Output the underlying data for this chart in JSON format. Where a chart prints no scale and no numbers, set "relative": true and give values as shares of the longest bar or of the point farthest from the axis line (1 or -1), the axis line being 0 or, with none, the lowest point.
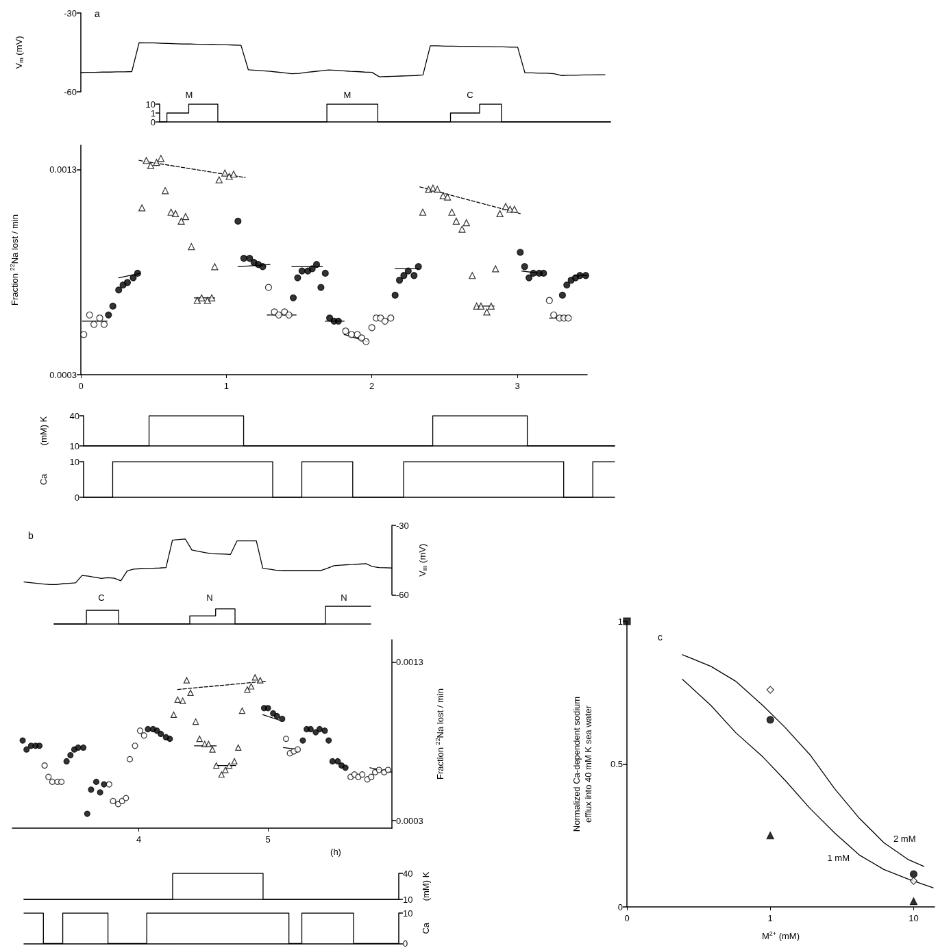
{
  "chart_data": [
    {
      "type": "line",
      "title": "a",
      "ylabel": "V$_{m}$ (mV)",
      "categories": [
        null,
        null,
        null,
        null,
        null,
        null,
        null,
        null,
        null,
        null,
        null,
        null,
        null,
        null,
        null,
        null,
        null,
        null,
        null,
        null,
        null,
        null,
        null,
        null,
        null,
        null,
        null,
        null,
        null,
        null,
        null,
        null,
        null,
        null,
        null,
        null,
        null,
        null,
        null,
        null,
        null,
        null,
        null,
        null,
        null,
        null,
        null,
        null,
        null,
        null,
        null,
        null,
        null,
        null,
        null,
        null,
        null,
        null,
        null,
        null,
        null,
        null,
        null,
        null,
        null,
        null,
        null,
        null,
        null,
        null,
        null,
        null,
        null
      ],
      "ylim": [
        -60,
        -30
      ],
      "yticks": [
        -30,
        -60
      ],
      "tick_labels": "y",
      "series": [
        {
          "color": "#000000",
          "marker": "none",
          "line_style": "solid",
          "values": [
            -52.7,
            -52.6,
            -52.6,
            -52.5,
            -52.5,
            -52.4,
            -52.4,
            -52.3,
            -41.3,
            -41.4,
            -41.4,
            -41.5,
            -41.6,
            -41.7,
            -41.8,
            -41.8,
            -41.9,
            -41.9,
            -42.0,
            -42.1,
            -42.1,
            -42.2,
            -42.3,
            -51.6,
            -51.8,
            -52.0,
            -52.2,
            -52.5,
            -52.8,
            -53.1,
            -53.0,
            -52.6,
            -52.3,
            -52.0,
            -51.7,
            -51.8,
            -52.0,
            -52.2,
            -52.3,
            -52.5,
            -52.6,
            -54.3,
            -54.2,
            -54.1,
            -54.0,
            -53.9,
            -53.8,
            -53.6,
            -42.5,
            -42.5,
            -42.6,
            -42.6,
            -42.7,
            -42.7,
            -42.7,
            -42.8,
            -42.8,
            -42.9,
            -42.9,
            -43.0,
            -43.0,
            -52.8,
            -52.8,
            -52.9,
            -52.9,
            -53.1,
            -53.8,
            -53.7,
            -53.7,
            -53.6,
            -53.6,
            -53.5,
            -53.5
          ]
        }
      ]
    },
    {
      "type": "step",
      "categories": [
        null,
        null,
        null,
        null,
        null,
        null,
        null,
        null,
        null,
        null,
        null,
        null,
        null,
        null,
        null,
        null,
        null,
        null,
        null,
        null,
        null,
        null,
        null,
        null,
        null,
        null,
        null,
        null,
        null,
        null,
        null,
        null,
        null,
        null,
        null,
        null,
        null,
        null,
        null,
        null,
        null,
        null,
        null,
        null,
        null,
        null,
        null,
        null,
        null,
        null,
        null,
        null,
        null,
        null,
        null,
        null,
        null,
        null,
        null,
        null,
        null,
        null,
        null
      ],
      "log": "y",
      "ylim": [
        0.1,
        10
      ],
      "yticks": [
        {
          "value": 0.1,
          "label": "0"
        },
        1,
        10
      ],
      "tick_labels": "y",
      "annotations": [
        "M",
        "M",
        "C"
      ],
      "series": [
        {
          "color": "#000000",
          "values": [
            0.1,
            1,
            1,
            1,
            10,
            10,
            10,
            10,
            0.1,
            0.1,
            0.1,
            0.1,
            0.1,
            0.1,
            0.1,
            0.1,
            0.1,
            0.1,
            0.1,
            0.1,
            0.1,
            0.1,
            0.1,
            10,
            10,
            10,
            10,
            10,
            10,
            10,
            0.1,
            0.1,
            0.1,
            0.1,
            0.1,
            0.1,
            0.1,
            0.1,
            0.1,
            0.1,
            1,
            1,
            1,
            1,
            10,
            10,
            10,
            0.1,
            0.1,
            0.1,
            0.1,
            0.1,
            0.1,
            0.1,
            0.1,
            0.1,
            0.1,
            0.1,
            0.1,
            0.1,
            0.1,
            0.1,
            0.1
          ]
        }
      ]
    },
    {
      "type": "scatter",
      "ylabel": "Fraction $^{22}$Na lost / min",
      "log": "y",
      "xlim": [
        0,
        3.48
      ],
      "xticks": [
        0,
        1,
        2,
        3
      ],
      "ylim": [
        0.0003,
        0.00155
      ],
      "yticks": [
        0.0003,
        0.0013
      ],
      "series": [
        {
          "color": "#ffffff",
          "marker": "circle",
          "x": [
            0.02,
            0.06,
            0.09,
            0.13,
            0.16,
            1.29,
            1.33,
            1.36,
            1.4,
            1.43,
            1.82,
            1.86,
            1.9,
            1.93,
            1.96,
            2,
            2.03,
            2.06,
            2.09,
            2.13,
            3.22,
            3.25,
            3.29,
            3.32,
            3.35
          ],
          "values": [
            0.0004,
            0.00046,
            0.00043,
            0.00045,
            0.00043,
            0.00056,
            0.00047,
            0.00046,
            0.00047,
            0.00046,
            0.00041,
            0.0004,
            0.0004,
            0.00039,
            0.00038,
            0.00042,
            0.00045,
            0.00045,
            0.00044,
            0.00045,
            0.00051,
            0.00046,
            0.00045,
            0.00045,
            0.00045
          ]
        },
        {
          "color": "#000000",
          "marker": "circle",
          "x": [
            0.19,
            0.22,
            0.26,
            0.29,
            0.32,
            0.36,
            0.39,
            1.08,
            1.12,
            1.16,
            1.19,
            1.22,
            1.25,
            1.46,
            1.49,
            1.52,
            1.56,
            1.59,
            1.62,
            1.65,
            1.68,
            1.71,
            1.74,
            1.77,
            2.16,
            2.19,
            2.22,
            2.25,
            2.29,
            2.32,
            3.02,
            3.05,
            3.08,
            3.11,
            3.15,
            3.18,
            3.31,
            3.34,
            3.37,
            3.4,
            3.43,
            3.47
          ],
          "values": [
            0.00046,
            0.00049,
            0.00055,
            0.00057,
            0.00058,
            0.0006,
            0.00062,
            0.0009,
            0.00069,
            0.00069,
            0.00067,
            0.00066,
            0.00065,
            0.00052,
            0.0006,
            0.00063,
            0.00063,
            0.00064,
            0.00066,
            0.00056,
            0.00062,
            0.00045,
            0.00044,
            0.00044,
            0.00053,
            0.00059,
            0.00061,
            0.00063,
            0.00061,
            0.00065,
            0.00072,
            0.00065,
            0.0006,
            0.00062,
            0.00062,
            0.00062,
            0.00053,
            0.00057,
            0.00059,
            0.0006,
            0.00061,
            0.00061
          ]
        },
        {
          "color": "#ffffff",
          "marker": "triangle",
          "x": [
            0.42,
            0.45,
            0.48,
            0.52,
            0.55,
            0.58,
            0.62,
            0.65,
            0.69,
            0.72,
            0.76,
            0.8,
            0.83,
            0.87,
            0.9,
            0.92,
            0.95,
            0.99,
            1.02,
            1.05,
            2.35,
            2.39,
            2.42,
            2.45,
            2.49,
            2.52,
            2.55,
            2.58,
            2.62,
            2.65,
            2.69,
            2.72,
            2.75,
            2.79,
            2.82,
            2.85,
            2.88,
            2.92,
            2.95,
            2.98
          ],
          "values": [
            0.00099,
            0.00139,
            0.00134,
            0.00137,
            0.00141,
            0.00112,
            0.00096,
            0.00095,
            0.0009,
            0.00093,
            0.00075,
            0.00051,
            0.00052,
            0.00051,
            0.00052,
            0.00065,
            0.00121,
            0.00127,
            0.00124,
            0.00126,
            0.00096,
            0.00113,
            0.00114,
            0.00113,
            0.00108,
            0.00107,
            0.00096,
            0.0009,
            0.00085,
            0.00089,
            0.00061,
            0.00049,
            0.00049,
            0.00047,
            0.00049,
            0.00064,
            0.00095,
            0.001,
            0.00098,
            0.00098
          ]
        },
        {
          "type": "line",
          "color": "#000000",
          "line_style": "dashed",
          "x": [
            0.4,
            1.13
          ],
          "values": [
            0.00139,
            0.00123
          ]
        },
        {
          "type": "line",
          "color": "#000000",
          "line_style": "dashed",
          "x": [
            2.33,
            3.02
          ],
          "values": [
            0.00115,
            0.00095
          ]
        },
        {
          "type": "line",
          "color": "#000000",
          "line_style": "solid",
          "x": [
            0.01,
            0.18
          ],
          "values": [
            0.00044,
            0.00044
          ]
        },
        {
          "type": "line",
          "color": "#000000",
          "line_style": "solid",
          "x": [
            0.26,
            0.41
          ],
          "values": [
            0.0006,
            0.00062
          ]
        },
        {
          "type": "line",
          "color": "#000000",
          "line_style": "solid",
          "x": [
            1.08,
            1.3
          ],
          "values": [
            0.00065,
            0.00066
          ]
        },
        {
          "type": "line",
          "color": "#000000",
          "line_style": "solid",
          "x": [
            1.28,
            1.48
          ],
          "values": [
            0.00046,
            0.00046
          ]
        },
        {
          "type": "line",
          "color": "#000000",
          "line_style": "solid",
          "x": [
            1.45,
            1.66
          ],
          "values": [
            0.00065,
            0.00065
          ]
        },
        {
          "type": "line",
          "color": "#000000",
          "line_style": "solid",
          "x": [
            1.68,
            1.81
          ],
          "values": [
            0.00044,
            0.00044
          ]
        },
        {
          "type": "line",
          "color": "#000000",
          "line_style": "solid",
          "x": [
            1.81,
            1.97
          ],
          "values": [
            0.0004,
            0.00038
          ]
        },
        {
          "type": "line",
          "color": "#000000",
          "line_style": "solid",
          "x": [
            2.16,
            2.32
          ],
          "values": [
            0.00064,
            0.00064
          ]
        },
        {
          "type": "line",
          "color": "#000000",
          "line_style": "solid",
          "x": [
            3.03,
            3.15
          ],
          "values": [
            0.00063,
            0.00062
          ]
        },
        {
          "type": "line",
          "color": "#000000",
          "line_style": "solid",
          "x": [
            3.22,
            3.36
          ],
          "values": [
            0.00045,
            0.00045
          ]
        },
        {
          "type": "line",
          "color": "#000000",
          "line_style": "solid",
          "x": [
            3.39,
            3.48
          ],
          "values": [
            0.00061,
            0.00061
          ]
        },
        {
          "type": "line",
          "color": "#000000",
          "line_style": "solid",
          "x": [
            0.78,
            0.92
          ],
          "values": [
            0.00052,
            0.00052
          ]
        },
        {
          "type": "line",
          "color": "#000000",
          "line_style": "solid",
          "x": [
            2.71,
            2.84
          ],
          "values": [
            0.00049,
            0.00049
          ]
        }
      ]
    },
    {
      "type": "step",
      "ylabel": "(mM) K",
      "categories": [
        null,
        null,
        null,
        null,
        null,
        null,
        null,
        null,
        null,
        null,
        null,
        null,
        null,
        null,
        null,
        null,
        null,
        null,
        null,
        null,
        null,
        null,
        null,
        null,
        null,
        null,
        null,
        null,
        null,
        null,
        null,
        null,
        null,
        null,
        null,
        null,
        null,
        null,
        null,
        null,
        null,
        null,
        null,
        null,
        null,
        null,
        null,
        null,
        null,
        null,
        null,
        null,
        null,
        null,
        null,
        null,
        null,
        null,
        null,
        null,
        null,
        null,
        null,
        null,
        null,
        null,
        null,
        null,
        null,
        null,
        null,
        null,
        null,
        null
      ],
      "ylim": [
        10,
        40
      ],
      "yticks": [
        10,
        40
      ],
      "tick_labels": "y",
      "series": [
        {
          "color": "#000000",
          "values": [
            10,
            10,
            10,
            10,
            10,
            10,
            10,
            10,
            10,
            40,
            40,
            40,
            40,
            40,
            40,
            40,
            40,
            40,
            40,
            40,
            40,
            40,
            10,
            10,
            10,
            10,
            10,
            10,
            10,
            10,
            10,
            10,
            10,
            10,
            10,
            10,
            10,
            10,
            10,
            10,
            10,
            10,
            10,
            10,
            10,
            10,
            10,
            10,
            40,
            40,
            40,
            40,
            40,
            40,
            40,
            40,
            40,
            40,
            40,
            40,
            40,
            10,
            10,
            10,
            10,
            10,
            10,
            10,
            10,
            10,
            10,
            10,
            10,
            10
          ]
        }
      ]
    },
    {
      "type": "step",
      "ylabel": "Ca",
      "categories": [
        null,
        null,
        null,
        null,
        null,
        null,
        null,
        null,
        null,
        null,
        null,
        null,
        null,
        null,
        null,
        null,
        null,
        null,
        null,
        null,
        null,
        null,
        null,
        null,
        null,
        null,
        null,
        null,
        null,
        null,
        null,
        null,
        null,
        null,
        null,
        null,
        null,
        null,
        null,
        null,
        null,
        null,
        null,
        null,
        null,
        null,
        null,
        null,
        null,
        null,
        null,
        null,
        null,
        null,
        null,
        null,
        null,
        null,
        null,
        null,
        null,
        null,
        null,
        null,
        null,
        null,
        null,
        null,
        null,
        null,
        null,
        null,
        null,
        null
      ],
      "ylim": [
        0,
        10
      ],
      "yticks": [
        0,
        10
      ],
      "tick_labels": "y",
      "series": [
        {
          "color": "#000000",
          "values": [
            0,
            0,
            0,
            0,
            10,
            10,
            10,
            10,
            10,
            10,
            10,
            10,
            10,
            10,
            10,
            10,
            10,
            10,
            10,
            10,
            10,
            10,
            10,
            10,
            10,
            10,
            0,
            0,
            0,
            0,
            10,
            10,
            10,
            10,
            10,
            10,
            10,
            0,
            0,
            0,
            0,
            0,
            0,
            0,
            10,
            10,
            10,
            10,
            10,
            10,
            10,
            10,
            10,
            10,
            10,
            10,
            10,
            10,
            10,
            10,
            10,
            10,
            10,
            10,
            10,
            10,
            0,
            0,
            0,
            0,
            10,
            10,
            10,
            10
          ]
        }
      ]
    },
    {
      "type": "line",
      "title": "b",
      "ylabel": "V$_{m}$ (mV)",
      "categories": [
        null,
        null,
        null,
        null,
        null,
        null,
        null,
        null,
        null,
        null,
        null,
        null,
        null,
        null,
        null,
        null,
        null,
        null,
        null,
        null,
        null,
        null,
        null,
        null,
        null,
        null,
        null,
        null,
        null,
        null,
        null,
        null,
        null,
        null,
        null,
        null,
        null,
        null,
        null,
        null,
        null,
        null,
        null,
        null,
        null,
        null,
        null,
        null,
        null,
        null,
        null,
        null,
        null,
        null,
        null,
        null,
        null,
        null
      ],
      "ylim": [
        -60,
        -30
      ],
      "yticks": [
        -30,
        -60
      ],
      "tick_labels": "y",
      "series": [
        {
          "color": "#000000",
          "marker": "none",
          "line_style": "solid",
          "values": [
            -54.4,
            -54.7,
            -55.0,
            -55.3,
            -55.5,
            -55.5,
            -55.2,
            -55.0,
            -54.8,
            -51.6,
            -51.9,
            -52.4,
            -52.9,
            -52.6,
            -52.8,
            -53.9,
            -49.6,
            -48.9,
            -48.7,
            -48.6,
            -48.5,
            -48.4,
            -48.2,
            -36.4,
            -36.1,
            -35.9,
            -40.6,
            -41.2,
            -41.7,
            -42.2,
            -42.3,
            -42.4,
            -42.5,
            -36.7,
            -36.7,
            -36.7,
            -36.7,
            -48.6,
            -48.9,
            -49.3,
            -49.5,
            -49.5,
            -49.5,
            -49.5,
            -49.5,
            -49.5,
            -49.5,
            -48.5,
            -47.4,
            -47.2,
            -47.0,
            -46.9,
            -46.7,
            -46.5,
            -47.8,
            -48.2,
            -48.3,
            -48.4
          ]
        }
      ]
    },
    {
      "type": "step",
      "categories": [
        null,
        null,
        null,
        null,
        null,
        null,
        null,
        null,
        null,
        null,
        null,
        null,
        null,
        null,
        null,
        null,
        null,
        null,
        null,
        null,
        null,
        null,
        null,
        null,
        null,
        null,
        null,
        null,
        null,
        null,
        null,
        null,
        null,
        null,
        null,
        null,
        null,
        null,
        null,
        null,
        null,
        null,
        null,
        null,
        null,
        null,
        null,
        null,
        null,
        null
      ],
      "relative": true,
      "tick_labels": false,
      "annotations": [
        "C",
        "N",
        "N"
      ],
      "series": [
        {
          "color": "#000000",
          "values": [
            0,
            0,
            0,
            0,
            0,
            0.77,
            0.77,
            0.77,
            0.77,
            0.77,
            0,
            0,
            0,
            0,
            0,
            0,
            0,
            0,
            0,
            0,
            0,
            0.46,
            0.46,
            0.46,
            0.46,
            0.85,
            0.85,
            0.85,
            0,
            0,
            0,
            0,
            0,
            0,
            0,
            0,
            0,
            0,
            0,
            0,
            0,
            0,
            1,
            1,
            1,
            1,
            1,
            1,
            1,
            1
          ]
        }
      ]
    },
    {
      "type": "scatter",
      "xlabel": "(h)",
      "ylabel": "Fraction $^{22}$Na lost / min",
      "log": "y",
      "xlim": [
        3.02,
        5.96
      ],
      "xticks": [
        4,
        5
      ],
      "ylim": [
        0.00028,
        0.0016
      ],
      "yticks": [
        0.0003,
        0.0013
      ],
      "series": [
        {
          "color": "#000000",
          "marker": "circle",
          "x": [
            3.1,
            3.13,
            3.165,
            3.2,
            3.23,
            3.44,
            3.47,
            3.5,
            3.53,
            3.57,
            3.6,
            3.63,
            3.67,
            3.7,
            3.73,
            4.07,
            4.11,
            4.14,
            4.17,
            4.21,
            4.24,
            4.97,
            5,
            5.04,
            5.07,
            5.11,
            5.27,
            5.3,
            5.33,
            5.37,
            5.4,
            5.44,
            5.47,
            5.5,
            5.54,
            5.57,
            5.6
          ],
          "values": [
            0.00063,
            0.00058,
            0.0006,
            0.0006,
            0.0006,
            0.00052,
            0.00055,
            0.00058,
            0.00059,
            0.00059,
            0.00032,
            0.0004,
            0.00043,
            0.00039,
            0.00042,
            0.0007,
            0.0007,
            0.00069,
            0.00067,
            0.00065,
            0.00064,
            0.00085,
            0.00085,
            0.00081,
            0.00079,
            0.00077,
            0.00063,
            0.0007,
            0.0007,
            0.00068,
            0.0007,
            0.00069,
            0.00063,
            0.00052,
            0.00052,
            0.0005,
            0.00049
          ]
        },
        {
          "color": "#ffffff",
          "marker": "circle",
          "x": [
            3.27,
            3.3,
            3.33,
            3.37,
            3.4,
            3.77,
            3.8,
            3.84,
            3.87,
            3.9,
            3.93,
            3.97,
            4.01,
            4.04,
            5.14,
            5.17,
            5.2,
            5.23,
            5.64,
            5.67,
            5.7,
            5.73,
            5.77,
            5.8,
            5.83,
            5.86,
            5.9,
            5.93
          ],
          "values": [
            0.0005,
            0.00045,
            0.00043,
            0.00043,
            0.00043,
            0.00042,
            0.00036,
            0.00035,
            0.00036,
            0.00037,
            0.00053,
            0.0006,
            0.00069,
            0.00066,
            0.00064,
            0.00056,
            0.00057,
            0.00058,
            0.00045,
            0.00046,
            0.00045,
            0.00046,
            0.00044,
            0.00045,
            0.00047,
            0.00048,
            0.00047,
            0.00048
          ]
        },
        {
          "color": "#ffffff",
          "marker": "triangle",
          "x": [
            4.27,
            4.3,
            4.34,
            4.37,
            4.4,
            4.44,
            4.47,
            4.51,
            4.54,
            4.57,
            4.6,
            4.64,
            4.67,
            4.7,
            4.74,
            4.77,
            4.8,
            4.84,
            4.87,
            4.9,
            4.94
          ],
          "values": [
            0.0008,
            0.00092,
            0.00091,
            0.0011,
            0.00098,
            0.00075,
            0.00064,
            0.00061,
            0.00061,
            0.00058,
            0.0005,
            0.00046,
            0.00048,
            0.0005,
            0.00052,
            0.00059,
            0.00083,
            0.00101,
            0.00104,
            0.00113,
            0.0011
          ]
        },
        {
          "type": "line",
          "color": "#000000",
          "line_style": "dashed",
          "x": [
            4.3,
            4.98
          ],
          "values": [
            0.00101,
            0.00109
          ]
        },
        {
          "type": "line",
          "color": "#000000",
          "line_style": "solid",
          "x": [
            4.43,
            4.6
          ],
          "values": [
            0.0006,
            0.0006
          ]
        },
        {
          "type": "line",
          "color": "#000000",
          "line_style": "solid",
          "x": [
            4.59,
            4.75
          ],
          "values": [
            0.0005,
            0.0005
          ]
        },
        {
          "type": "line",
          "color": "#000000",
          "line_style": "solid",
          "x": [
            4.96,
            5.09
          ],
          "values": [
            0.0008,
            0.00076
          ]
        },
        {
          "type": "line",
          "color": "#000000",
          "line_style": "solid",
          "x": [
            5.12,
            5.23
          ],
          "values": [
            0.00059,
            0.00058
          ]
        },
        {
          "type": "line",
          "color": "#000000",
          "line_style": "solid",
          "x": [
            5.79,
            5.96
          ],
          "values": [
            0.00049,
            0.00047
          ]
        }
      ]
    },
    {
      "type": "step",
      "ylabel": "(mM) K",
      "categories": [
        null,
        null,
        null,
        null,
        null,
        null,
        null,
        null,
        null,
        null,
        null,
        null,
        null,
        null,
        null,
        null,
        null,
        null,
        null,
        null,
        null,
        null,
        null,
        null,
        null,
        null,
        null,
        null,
        null,
        null,
        null,
        null,
        null,
        null,
        null,
        null,
        null,
        null,
        null,
        null,
        null,
        null,
        null,
        null,
        null,
        null,
        null,
        null,
        null,
        null,
        null,
        null,
        null,
        null,
        null,
        null,
        null,
        null,
        null
      ],
      "ylim": [
        10,
        40
      ],
      "yticks": [
        10,
        40
      ],
      "tick_labels": "y",
      "series": [
        {
          "color": "#000000",
          "values": [
            10,
            10,
            10,
            10,
            10,
            10,
            10,
            10,
            10,
            10,
            10,
            10,
            10,
            10,
            10,
            10,
            10,
            10,
            10,
            10,
            10,
            10,
            10,
            40,
            40,
            40,
            40,
            40,
            40,
            40,
            40,
            40,
            40,
            40,
            40,
            40,
            40,
            10,
            10,
            10,
            10,
            10,
            10,
            10,
            10,
            10,
            10,
            10,
            10,
            10,
            10,
            10,
            10,
            10,
            10,
            10,
            10,
            10,
            10
          ]
        }
      ]
    },
    {
      "type": "step",
      "ylabel": "Ca",
      "categories": [
        null,
        null,
        null,
        null,
        null,
        null,
        null,
        null,
        null,
        null,
        null,
        null,
        null,
        null,
        null,
        null,
        null,
        null,
        null,
        null,
        null,
        null,
        null,
        null,
        null,
        null,
        null,
        null,
        null,
        null,
        null,
        null,
        null,
        null,
        null,
        null,
        null,
        null,
        null,
        null,
        null,
        null,
        null,
        null,
        null,
        null,
        null,
        null,
        null,
        null,
        null,
        null,
        null,
        null,
        null,
        null,
        null,
        null,
        null
      ],
      "ylim": [
        0,
        10
      ],
      "yticks": [
        0,
        10
      ],
      "tick_labels": "y",
      "series": [
        {
          "color": "#000000",
          "values": [
            10,
            10,
            10,
            0,
            0,
            0,
            10,
            10,
            10,
            10,
            10,
            10,
            10,
            0,
            0,
            0,
            0,
            0,
            0,
            10,
            10,
            10,
            10,
            10,
            10,
            10,
            10,
            10,
            10,
            10,
            10,
            10,
            10,
            10,
            10,
            10,
            10,
            10,
            10,
            10,
            10,
            0,
            0,
            10,
            10,
            10,
            10,
            10,
            10,
            10,
            10,
            0,
            0,
            0,
            0,
            0,
            0,
            0,
            0
          ]
        }
      ]
    },
    {
      "type": "scatter",
      "title": "c",
      "xlabel": "M$^{2+}$ (mM)",
      "ylabel": "Normalized Ca-dependent sodium\nefflux into 40 mM K sea water",
      "log": "x",
      "xlim": [
        0.1,
        14
      ],
      "xticks": [
        {
          "value": 0.1,
          "label": "0"
        },
        1,
        10
      ],
      "ylim": [
        0,
        1
      ],
      "yticks": [
        0,
        0.5,
        1
      ],
      "series": [
        {
          "type": "line",
          "name": "2 mM",
          "color": "#000000",
          "line_style": "solid",
          "x": [
            0.244,
            0.386,
            0.574,
            0.888,
            1.27,
            1.89,
            2.81,
            4.17,
            6.2,
            9.22,
            11.8
          ],
          "values": [
            0.883,
            0.842,
            0.79,
            0.705,
            0.628,
            0.533,
            0.414,
            0.311,
            0.225,
            0.165,
            0.142
          ]
        },
        {
          "type": "line",
          "name": "1 mM",
          "color": "#000000",
          "line_style": "solid",
          "x": [
            0.244,
            0.386,
            0.574,
            0.888,
            1.27,
            1.89,
            2.81,
            4.17,
            6.2,
            9.22,
            13.7
          ],
          "values": [
            0.797,
            0.705,
            0.61,
            0.525,
            0.443,
            0.345,
            0.259,
            0.182,
            0.131,
            0.097,
            0.067
          ]
        },
        {
          "color": "#000000",
          "marker": "square",
          "x": [
            0.1
          ],
          "values": [
            1
          ]
        },
        {
          "color": "#ffffff",
          "marker": "diamond",
          "x": [
            1,
            10
          ],
          "values": [
            0.76,
            0.091
          ]
        },
        {
          "color": "#000000",
          "marker": "circle",
          "x": [
            1,
            10
          ],
          "values": [
            0.655,
            0.115
          ]
        },
        {
          "color": "#000000",
          "marker": "triangle",
          "x": [
            1,
            10
          ],
          "values": [
            0.25,
            0.02
          ]
        }
      ]
    }
  ]
}
